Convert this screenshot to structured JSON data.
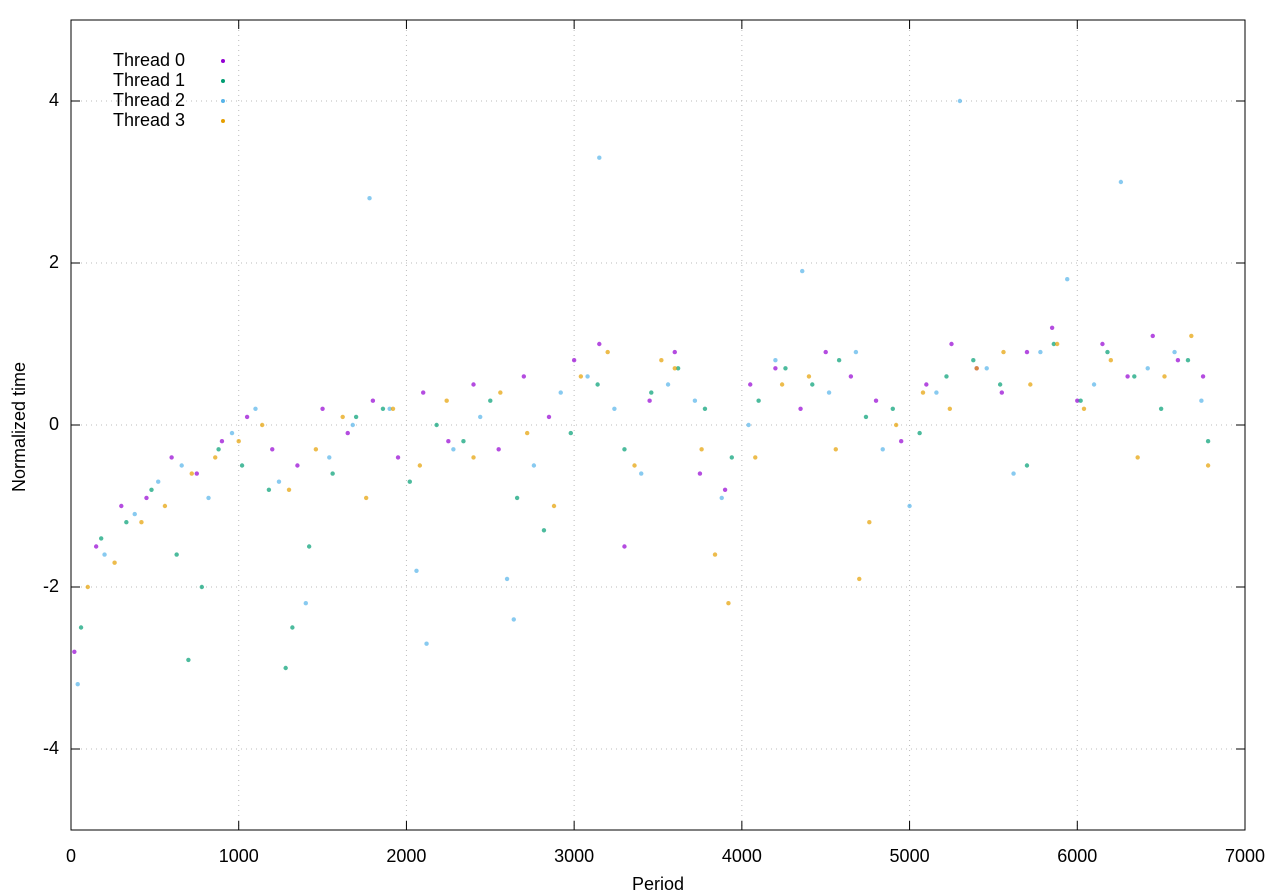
{
  "chart_data": {
    "type": "scatter",
    "x_label": "Period",
    "y_label": "Normalized time",
    "xlim": [
      0,
      7000
    ],
    "xticks": [
      0,
      1000,
      2000,
      3000,
      4000,
      5000,
      6000,
      7000
    ],
    "ylim": [
      -5,
      5
    ],
    "yticks": [
      -4,
      -2,
      0,
      2,
      4
    ],
    "grid": true,
    "legend": "top-left",
    "series": [
      {
        "name": "Thread 0",
        "color": "#9400d3",
        "x": [
          20,
          150,
          300,
          450,
          600,
          750,
          900,
          1050,
          1200,
          1350,
          1500,
          1650,
          1800,
          1950,
          2100,
          2250,
          2400,
          2550,
          2700,
          2850,
          3000,
          3150,
          3300,
          3450,
          3600,
          3750,
          3900,
          4050,
          4200,
          4350,
          4500,
          4650,
          4800,
          4950,
          5100,
          5250,
          5400,
          5550,
          5700,
          5850,
          6000,
          6150,
          6300,
          6450,
          6600,
          6750
        ],
        "values": [
          -2.8,
          -1.5,
          -1.0,
          -0.9,
          -0.4,
          -0.6,
          -0.2,
          0.1,
          -0.3,
          -0.5,
          0.2,
          -0.1,
          0.3,
          -0.4,
          0.4,
          -0.2,
          0.5,
          -0.3,
          0.6,
          0.1,
          0.8,
          1.0,
          -1.5,
          0.3,
          0.9,
          -0.6,
          -0.8,
          0.5,
          0.7,
          0.2,
          0.9,
          0.6,
          0.3,
          -0.2,
          0.5,
          1.0,
          0.7,
          0.4,
          0.9,
          1.2,
          0.3,
          1.0,
          0.6,
          1.1,
          0.8,
          0.6
        ]
      },
      {
        "name": "Thread 1",
        "color": "#009e73",
        "x": [
          60,
          180,
          330,
          480,
          630,
          700,
          780,
          880,
          1020,
          1180,
          1280,
          1320,
          1420,
          1560,
          1700,
          1860,
          2020,
          2180,
          2340,
          2500,
          2660,
          2820,
          2980,
          3140,
          3300,
          3460,
          3620,
          3780,
          3940,
          4100,
          4260,
          4420,
          4580,
          4740,
          4900,
          5060,
          5220,
          5380,
          5540,
          5700,
          5860,
          6020,
          6180,
          6340,
          6500,
          6660,
          6780
        ],
        "values": [
          -2.5,
          -1.4,
          -1.2,
          -0.8,
          -1.6,
          -2.9,
          -2.0,
          -0.3,
          -0.5,
          -0.8,
          -3.0,
          -2.5,
          -1.5,
          -0.6,
          0.1,
          0.2,
          -0.7,
          0.0,
          -0.2,
          0.3,
          -0.9,
          -1.3,
          -0.1,
          0.5,
          -0.3,
          0.4,
          0.7,
          0.2,
          -0.4,
          0.3,
          0.7,
          0.5,
          0.8,
          0.1,
          0.2,
          -0.1,
          0.6,
          0.8,
          0.5,
          -0.5,
          1.0,
          0.3,
          0.9,
          0.6,
          0.2,
          0.8,
          -0.2
        ]
      },
      {
        "name": "Thread 2",
        "color": "#56b4e9",
        "x": [
          40,
          200,
          380,
          520,
          660,
          820,
          960,
          1100,
          1240,
          1400,
          1540,
          1680,
          1780,
          1900,
          2060,
          2120,
          2280,
          2440,
          2600,
          2640,
          2760,
          2920,
          3080,
          3150,
          3240,
          3400,
          3560,
          3720,
          3880,
          4040,
          4200,
          4360,
          4520,
          4680,
          4840,
          5000,
          5160,
          5300,
          5460,
          5620,
          5780,
          5940,
          6100,
          6260,
          6420,
          6580,
          6740
        ],
        "values": [
          -3.2,
          -1.6,
          -1.1,
          -0.7,
          -0.5,
          -0.9,
          -0.1,
          0.2,
          -0.7,
          -2.2,
          -0.4,
          0.0,
          2.8,
          0.2,
          -1.8,
          -2.7,
          -0.3,
          0.1,
          -1.9,
          -2.4,
          -0.5,
          0.4,
          0.6,
          3.3,
          0.2,
          -0.6,
          0.5,
          0.3,
          -0.9,
          0.0,
          0.8,
          1.9,
          0.4,
          0.9,
          -0.3,
          -1.0,
          0.4,
          4.0,
          0.7,
          -0.6,
          0.9,
          1.8,
          0.5,
          3.0,
          0.7,
          0.9,
          0.3
        ]
      },
      {
        "name": "Thread 3",
        "color": "#e69f00",
        "x": [
          100,
          260,
          420,
          560,
          720,
          860,
          1000,
          1140,
          1300,
          1460,
          1620,
          1760,
          1920,
          2080,
          2240,
          2400,
          2560,
          2720,
          2880,
          3040,
          3200,
          3360,
          3520,
          3600,
          3760,
          3840,
          3920,
          4080,
          4240,
          4400,
          4560,
          4700,
          4760,
          4920,
          5080,
          5240,
          5400,
          5560,
          5720,
          5880,
          6040,
          6200,
          6360,
          6520,
          6680,
          6780
        ],
        "values": [
          -2.0,
          -1.7,
          -1.2,
          -1.0,
          -0.6,
          -0.4,
          -0.2,
          0.0,
          -0.8,
          -0.3,
          0.1,
          -0.9,
          0.2,
          -0.5,
          0.3,
          -0.4,
          0.4,
          -0.1,
          -1.0,
          0.6,
          0.9,
          -0.5,
          0.8,
          0.7,
          -0.3,
          -1.6,
          -2.2,
          -0.4,
          0.5,
          0.6,
          -0.3,
          -1.9,
          -1.2,
          0.0,
          0.4,
          0.2,
          0.7,
          0.9,
          0.5,
          1.0,
          0.2,
          0.8,
          -0.4,
          0.6,
          1.1,
          -0.5
        ]
      }
    ]
  }
}
